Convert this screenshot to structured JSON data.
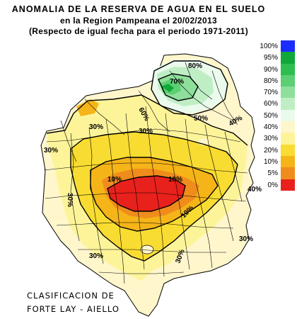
{
  "header": {
    "title_line1": "ANOMALIA DE LA RESERVA DE AGUA EN EL SUELO",
    "title_line2": "en la Region Pampeana el   20/02/2013",
    "title_line3": "(Respecto de igual fecha para el periodo 1971-2011)"
  },
  "legend": {
    "items": [
      {
        "label": "100%",
        "color": "#1a2cff"
      },
      {
        "label": "95%",
        "color": "#10a83a"
      },
      {
        "label": "90%",
        "color": "#2ebd4f"
      },
      {
        "label": "80%",
        "color": "#5ccf72"
      },
      {
        "label": "70%",
        "color": "#8edf9c"
      },
      {
        "label": "60%",
        "color": "#bfeec5"
      },
      {
        "label": "50%",
        "color": "#eafaec"
      },
      {
        "label": "40%",
        "color": "#fff6cc"
      },
      {
        "label": "30%",
        "color": "#fdf49a"
      },
      {
        "label": "20%",
        "color": "#f9dc32"
      },
      {
        "label": "10%",
        "color": "#f5b418"
      },
      {
        "label": "5%",
        "color": "#f08c1c"
      },
      {
        "label": "0%",
        "color": "#e8211c"
      }
    ]
  },
  "map": {
    "isolines": [
      {
        "label": "80%"
      },
      {
        "label": "70%"
      },
      {
        "label": "60%"
      },
      {
        "label": "50%"
      },
      {
        "label": "40%"
      },
      {
        "label": "30%"
      },
      {
        "label": "30%"
      },
      {
        "label": "30%"
      },
      {
        "label": "30%"
      },
      {
        "label": "30%"
      },
      {
        "label": "30%"
      },
      {
        "label": "10%"
      },
      {
        "label": "10%"
      },
      {
        "label": "10%"
      },
      {
        "label": "30%"
      },
      {
        "label": "40%"
      }
    ]
  },
  "credits": {
    "line1": "CLASIFICACION DE",
    "line2": "FORTE LAY - AIELLO"
  }
}
